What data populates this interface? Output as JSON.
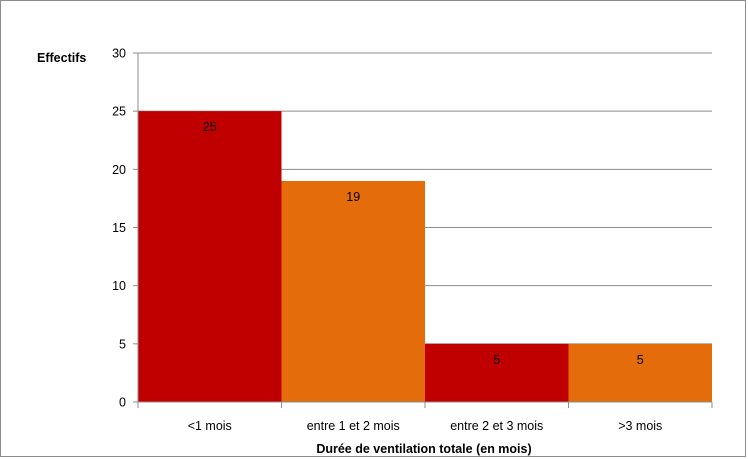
{
  "chart_data": {
    "type": "bar",
    "categories": [
      "<1 mois",
      "entre 1 et 2 mois",
      "entre 2 et 3 mois",
      ">3 mois"
    ],
    "values": [
      25,
      19,
      5,
      5
    ],
    "bar_colors": [
      "#c00000",
      "#e46c0a",
      "#c00000",
      "#e46c0a"
    ],
    "data_labels": [
      "25",
      "19",
      "5",
      "5"
    ],
    "title": "",
    "xlabel": "Durée de ventilation totale (en mois)",
    "ylabel": "Effectifs",
    "ylim": [
      0,
      30
    ],
    "y_ticks": [
      0,
      5,
      10,
      15,
      20,
      25,
      30
    ],
    "grid": true,
    "legend": "none"
  }
}
